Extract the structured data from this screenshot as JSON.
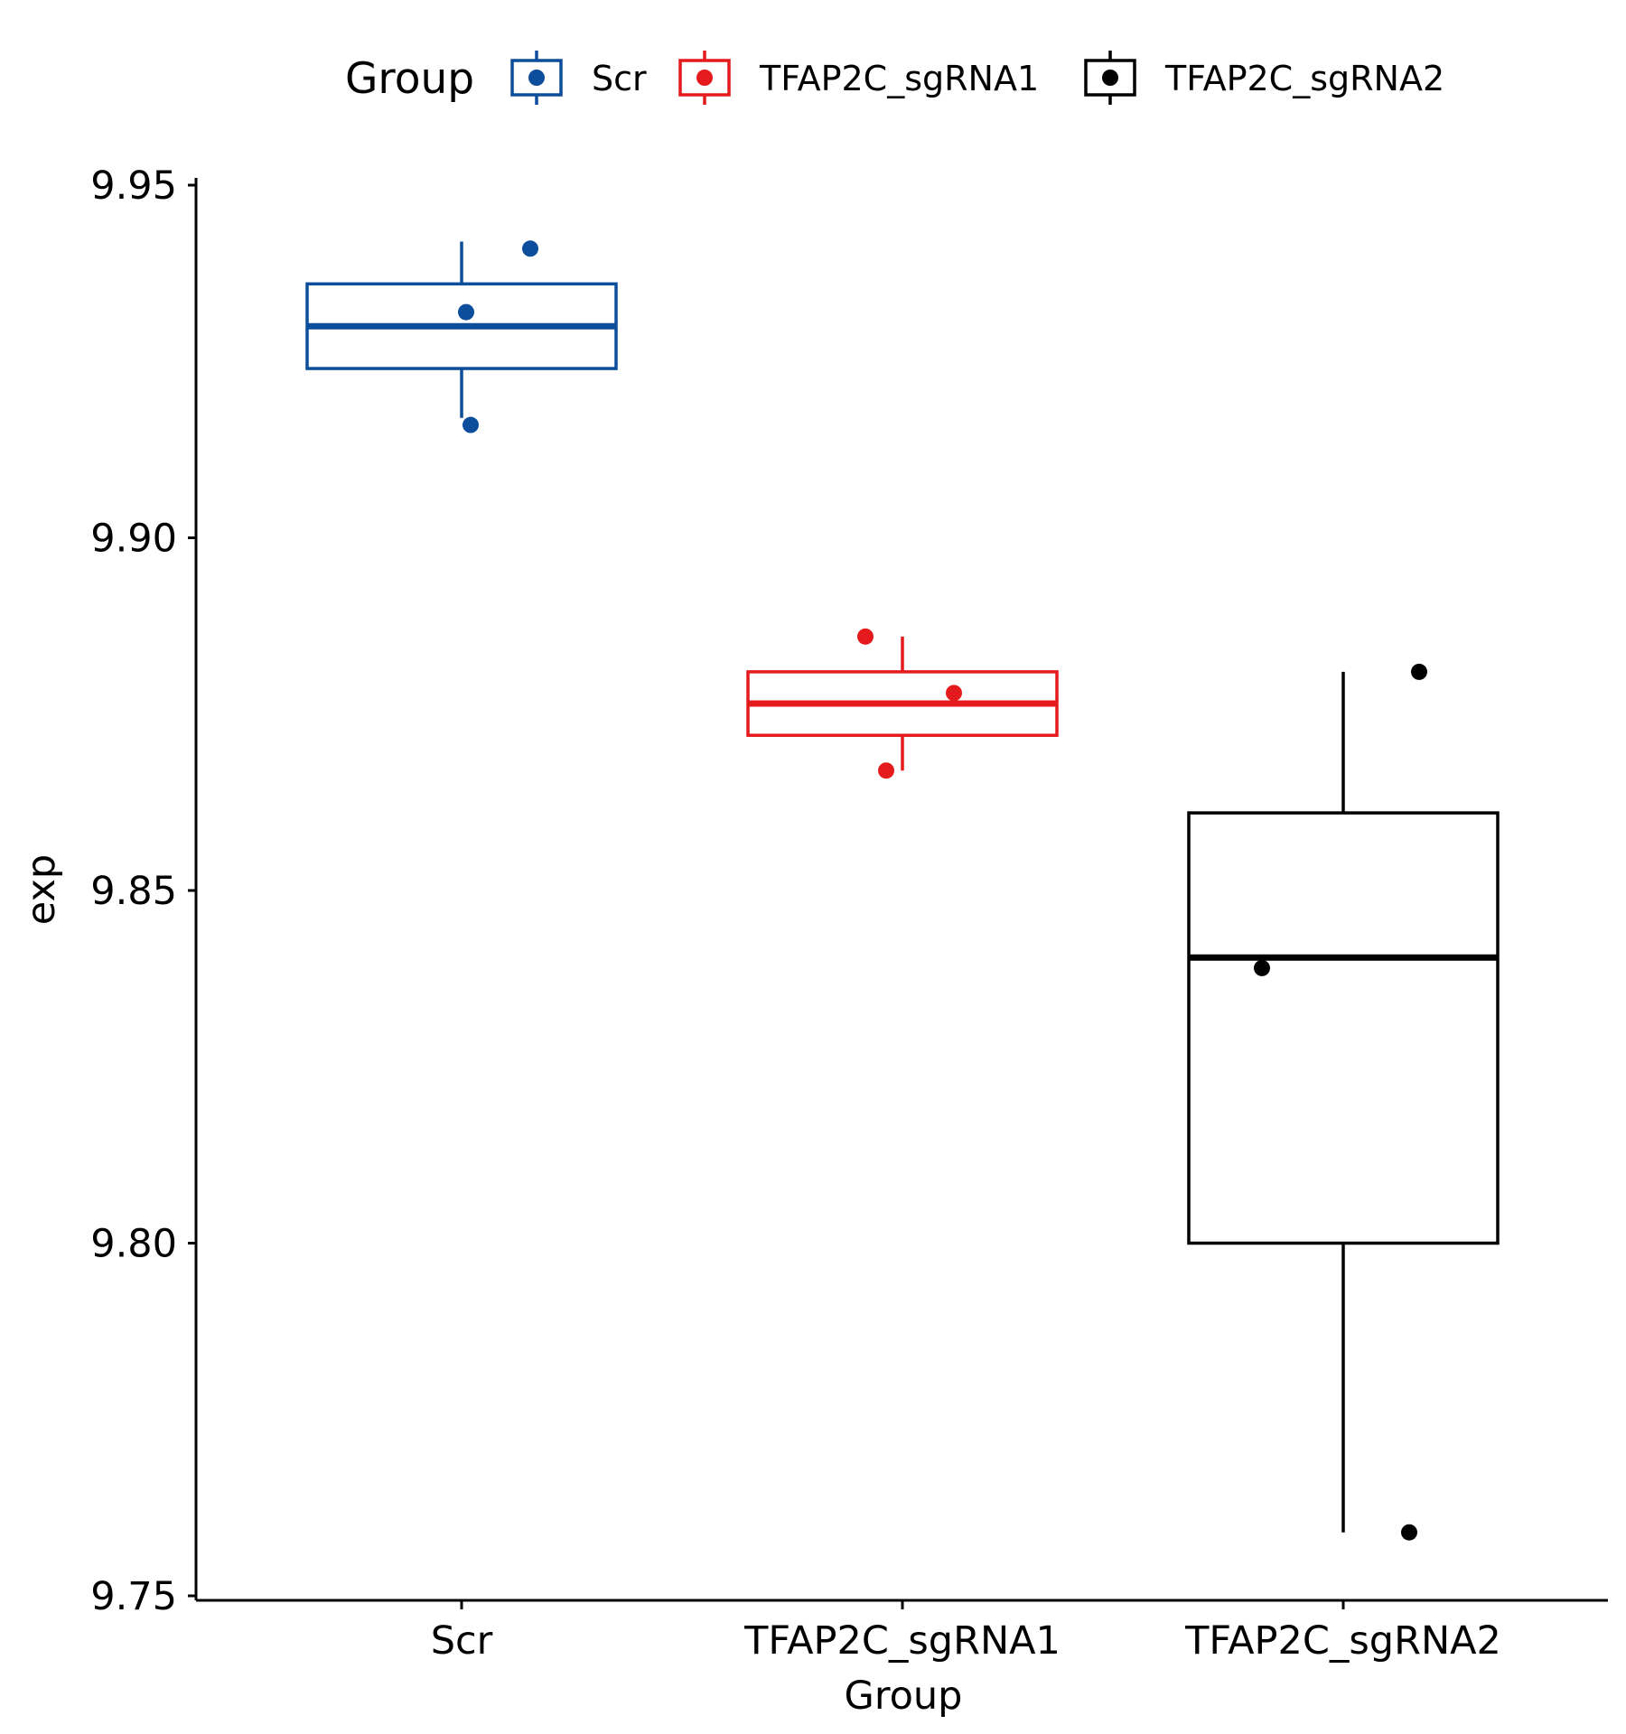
{
  "chart_data": {
    "type": "boxplot",
    "xlabel": "Group",
    "ylabel": "exp",
    "ylim": [
      9.75,
      9.95
    ],
    "yticks": [
      "9.75",
      "9.80",
      "9.85",
      "9.90",
      "9.95"
    ],
    "categories": [
      "Scr",
      "TFAP2C_sgRNA1",
      "TFAP2C_sgRNA2"
    ],
    "legend": {
      "title": "Group",
      "placement": "top",
      "items": [
        "Scr",
        "TFAP2C_sgRNA1",
        "TFAP2C_sgRNA2"
      ]
    },
    "grid": false,
    "series": [
      {
        "name": "Scr",
        "color": "#0C4E9C",
        "whisker_low": 9.917,
        "q1": 9.924,
        "median": 9.93,
        "q3": 9.936,
        "whisker_high": 9.942,
        "points": [
          9.941,
          9.932,
          9.916
        ]
      },
      {
        "name": "TFAP2C_sgRNA1",
        "color": "#E41A1C",
        "whisker_low": 9.867,
        "q1": 9.872,
        "median": 9.8765,
        "q3": 9.881,
        "whisker_high": 9.886,
        "points": [
          9.886,
          9.878,
          9.867
        ]
      },
      {
        "name": "TFAP2C_sgRNA2",
        "color": "#000000",
        "whisker_low": 9.759,
        "q1": 9.8,
        "median": 9.8405,
        "q3": 9.861,
        "whisker_high": 9.881,
        "points": [
          9.881,
          9.839,
          9.759
        ]
      }
    ]
  }
}
